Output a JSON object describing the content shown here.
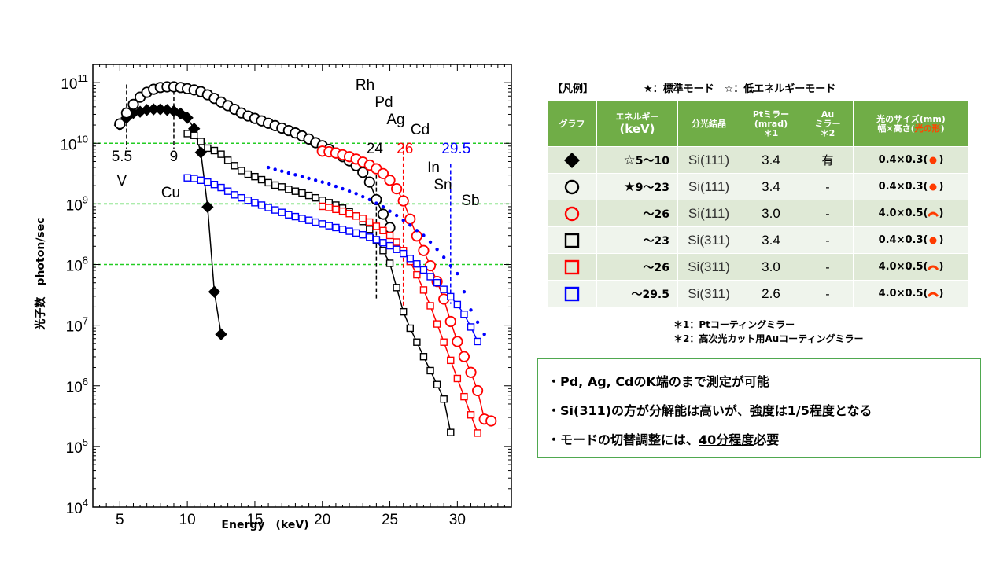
{
  "chart_data": {
    "type": "scatter",
    "xlabel": "Energy　(keV)",
    "ylabel": "光子数　photon/sec",
    "xlim": [
      3,
      34
    ],
    "ylim_log10": [
      4,
      11.3
    ],
    "y_scale": "log",
    "x_ticks": [
      "5",
      "10",
      "15",
      "20",
      "25",
      "30"
    ],
    "y_ticks": [
      {
        "base": "10",
        "exp": "4"
      },
      {
        "base": "10",
        "exp": "5"
      },
      {
        "base": "10",
        "exp": "6"
      },
      {
        "base": "10",
        "exp": "7"
      },
      {
        "base": "10",
        "exp": "8"
      },
      {
        "base": "10",
        "exp": "9"
      },
      {
        "base": "10",
        "exp": "10"
      },
      {
        "base": "10",
        "exp": "11"
      }
    ],
    "gridlines_y": [
      8,
      9,
      10
    ],
    "grid_color": "#22cc22",
    "series": [
      {
        "symbol": "diamond",
        "color": "#000000",
        "filled": true,
        "x": [
          5,
          5.5,
          6,
          6.5,
          7,
          7.5,
          8,
          8.5,
          9,
          9.5,
          10,
          10.5,
          11,
          11.5,
          12,
          12.5
        ],
        "log_y": [
          10.3,
          10.42,
          10.5,
          10.52,
          10.55,
          10.56,
          10.56,
          10.55,
          10.53,
          10.49,
          10.42,
          10.24,
          9.85,
          8.95,
          7.55,
          6.85
        ]
      },
      {
        "symbol": "circle",
        "color": "#000000",
        "filled": false,
        "x": [
          5,
          5.5,
          6,
          6.5,
          7,
          7.5,
          8,
          8.5,
          9,
          9.5,
          10,
          10.5,
          11,
          11.5,
          12,
          12.5,
          13,
          13.5,
          14,
          14.5,
          15,
          15.5,
          16,
          16.5,
          17,
          17.5,
          18,
          18.5,
          19,
          19.5,
          20,
          20.5,
          21,
          21.5,
          22,
          22.5,
          23,
          23.5,
          24,
          24.5,
          25
        ],
        "log_y": [
          10.32,
          10.5,
          10.64,
          10.76,
          10.84,
          10.89,
          10.92,
          10.93,
          10.93,
          10.92,
          10.9,
          10.88,
          10.85,
          10.8,
          10.74,
          10.68,
          10.62,
          10.56,
          10.5,
          10.45,
          10.41,
          10.37,
          10.33,
          10.29,
          10.25,
          10.21,
          10.17,
          10.12,
          10.07,
          10.01,
          9.96,
          9.9,
          9.84,
          9.78,
          9.71,
          9.63,
          9.52,
          9.36,
          9.07,
          8.83,
          8.61
        ]
      },
      {
        "symbol": "circle",
        "color": "#ff0000",
        "filled": false,
        "x": [
          20,
          20.5,
          21,
          21.5,
          22,
          22.5,
          23,
          23.5,
          24,
          24.5,
          25,
          25.5,
          26,
          26.5,
          27,
          27.5,
          28,
          28.5,
          29,
          29.5,
          30,
          30.5,
          31,
          31.5,
          32,
          32.5
        ],
        "log_y": [
          9.87,
          9.86,
          9.84,
          9.81,
          9.78,
          9.74,
          9.69,
          9.64,
          9.58,
          9.5,
          9.39,
          9.25,
          9.05,
          8.75,
          8.47,
          8.23,
          7.98,
          7.72,
          7.43,
          7.06,
          6.73,
          6.48,
          6.22,
          5.92,
          5.45,
          5.42
        ]
      },
      {
        "symbol": "square",
        "color": "#000000",
        "filled": false,
        "x": [
          10,
          10.5,
          11,
          11.5,
          12,
          12.5,
          13,
          13.5,
          14,
          14.5,
          15,
          15.5,
          16,
          16.5,
          17,
          17.5,
          18,
          18.5,
          19,
          19.5,
          20,
          20.5,
          21,
          21.5,
          22,
          22.5,
          23,
          23.5,
          24,
          24.5,
          25,
          25.5,
          26,
          26.5,
          27,
          27.5,
          28,
          28.5,
          29,
          29.5
        ],
        "log_y": [
          10.16,
          10.13,
          10.03,
          9.92,
          9.88,
          9.82,
          9.72,
          9.63,
          9.55,
          9.49,
          9.45,
          9.4,
          9.35,
          9.31,
          9.28,
          9.24,
          9.21,
          9.18,
          9.14,
          9.1,
          9.06,
          9.02,
          8.98,
          8.93,
          8.87,
          8.8,
          8.71,
          8.58,
          8.4,
          8.23,
          8.02,
          7.62,
          7.22,
          6.95,
          6.72,
          6.48,
          6.25,
          6.02,
          5.78,
          5.23
        ]
      },
      {
        "symbol": "square",
        "color": "#ff0000",
        "filled": false,
        "x": [
          20,
          20.5,
          21,
          21.5,
          22,
          22.5,
          23,
          23.5,
          24,
          24.5,
          25,
          25.5,
          26,
          26.5,
          27,
          27.5,
          28,
          28.5,
          29,
          29.5,
          30,
          30.5,
          31,
          31.5
        ],
        "log_y": [
          8.96,
          8.94,
          8.91,
          8.88,
          8.84,
          8.8,
          8.76,
          8.7,
          8.63,
          8.56,
          8.48,
          8.37,
          8.23,
          8.05,
          7.83,
          7.58,
          7.32,
          7.02,
          6.72,
          6.42,
          6.12,
          5.82,
          5.52,
          5.22
        ]
      },
      {
        "symbol": "square",
        "color": "#0000ff",
        "filled": false,
        "x": [
          10,
          10.5,
          11,
          11.5,
          12,
          12.5,
          13,
          13.5,
          14,
          14.5,
          15,
          15.5,
          16,
          16.5,
          17,
          17.5,
          18,
          18.5,
          19,
          19.5,
          20,
          20.5,
          21,
          21.5,
          22,
          22.5,
          23,
          23.5,
          24,
          24.5,
          25,
          25.5,
          26,
          26.5,
          27,
          27.5,
          28,
          28.5,
          29,
          29.5,
          30,
          30.5,
          31,
          31.5
        ],
        "log_y": [
          9.43,
          9.42,
          9.39,
          9.36,
          9.32,
          9.27,
          9.21,
          9.15,
          9.1,
          9.06,
          9.02,
          8.98,
          8.94,
          8.9,
          8.86,
          8.82,
          8.79,
          8.76,
          8.73,
          8.7,
          8.67,
          8.64,
          8.61,
          8.58,
          8.55,
          8.52,
          8.49,
          8.45,
          8.41,
          8.36,
          8.31,
          8.25,
          8.18,
          8.1,
          8.01,
          7.91,
          7.8,
          7.7,
          7.59,
          7.47,
          7.34,
          7.18,
          6.97,
          6.73
        ]
      },
      {
        "symbol": "dot",
        "color": "#0000ff",
        "filled": true,
        "x": [
          16,
          16.5,
          17,
          17.5,
          18,
          18.5,
          19,
          19.5,
          20,
          20.5,
          21,
          21.5,
          22,
          22.5,
          23,
          23.5,
          24,
          24.5,
          25,
          25.5,
          26,
          26.5,
          27,
          27.5,
          28,
          28.5,
          29,
          29.5,
          30,
          30.5,
          31,
          31.5,
          32
        ],
        "log_y": [
          9.6,
          9.57,
          9.54,
          9.51,
          9.48,
          9.45,
          9.42,
          9.39,
          9.36,
          9.33,
          9.29,
          9.25,
          9.21,
          9.17,
          9.12,
          9.07,
          9.01,
          8.95,
          8.88,
          8.81,
          8.73,
          8.65,
          8.56,
          8.48,
          8.37,
          8.25,
          8.12,
          7.98,
          7.85,
          7.55,
          7.25,
          7.05,
          6.85
        ]
      }
    ],
    "edges": [
      {
        "x": 5.5,
        "log_top": 10.97,
        "log_bottom": 9.9,
        "color": "#000000",
        "value_label": "5.5",
        "element_label": "V"
      },
      {
        "x": 9,
        "log_top": 10.97,
        "log_bottom": 9.9,
        "color": "#000000",
        "value_label": "9",
        "element_label": "Cu"
      },
      {
        "x": 24,
        "log_top": 9.58,
        "log_bottom": 7.42,
        "color": "#000000",
        "value_label": "24",
        "element_label": ""
      },
      {
        "x": 26,
        "log_top": 9.98,
        "log_bottom": 7.32,
        "color": "#ff0000",
        "value_label": "26",
        "element_label": ""
      },
      {
        "x": 29.5,
        "log_top": 9.66,
        "log_bottom": 7.35,
        "color": "#0000ff",
        "value_label": "29.5",
        "element_label": ""
      }
    ],
    "element_labels": [
      "Rh",
      "Pd",
      "Ag",
      "Cd",
      "In",
      "Sn",
      "Sb"
    ]
  },
  "legend": {
    "title": "【凡例】",
    "modes": "★：標準モード　☆：低エネルギーモード",
    "headers": {
      "graph": "グラフ",
      "energy_1": "エネルギー",
      "energy_2": "(keV)",
      "crystal": "分光結晶",
      "pt_1": "Ptミラー",
      "pt_2": "(mrad)",
      "pt_3": "＊1",
      "au_1": "Au",
      "au_2": "ミラー",
      "au_3": "＊2",
      "size_1": "光のサイズ(mm)",
      "size_2a": "幅×高さ(",
      "size_2b": "光の形",
      "size_2c": ")"
    },
    "rows": [
      {
        "symbol": "diamond",
        "color": "#000000",
        "star": "☆",
        "energy": "5～10",
        "crystal": "Si(111)",
        "pt": "3.4",
        "au": "有",
        "size": "0.4×0.3",
        "shape": "dot"
      },
      {
        "symbol": "circle",
        "color": "#000000",
        "star": "★",
        "energy": "9～23",
        "crystal": "Si(111)",
        "pt": "3.4",
        "au": "-",
        "size": "0.4×0.3",
        "shape": "dot"
      },
      {
        "symbol": "circle",
        "color": "#ff0000",
        "star": "",
        "energy": "～26",
        "crystal": "Si(111)",
        "pt": "3.0",
        "au": "-",
        "size": "4.0×0.5",
        "shape": "arc"
      },
      {
        "symbol": "square",
        "color": "#000000",
        "star": "",
        "energy": "～23",
        "crystal": "Si(311)",
        "pt": "3.4",
        "au": "-",
        "size": "0.4×0.3",
        "shape": "dot"
      },
      {
        "symbol": "square",
        "color": "#ff0000",
        "star": "",
        "energy": "～26",
        "crystal": "Si(311)",
        "pt": "3.0",
        "au": "-",
        "size": "4.0×0.5",
        "shape": "arc"
      },
      {
        "symbol": "square",
        "color": "#0000ff",
        "star": "",
        "energy": "～29.5",
        "crystal": "Si(311)",
        "pt": "2.6",
        "au": "-",
        "size": "4.0×0.5",
        "shape": "arc"
      }
    ],
    "paren_open": "(",
    "paren_close": ")",
    "footnote_1": "＊1：Ptコーティングミラー",
    "footnote_2": "＊2：高次光カット用Auコーティングミラー"
  },
  "notes": {
    "line1": "・Pd, Ag, CdのK端のまで測定が可能",
    "line2": "・Si(311)の方が分解能は高いが、強度は1/5程度となる",
    "line3_a": "・モードの切替調整には、",
    "line3_u": "40分程度",
    "line3_b": "必要"
  },
  "colors": {
    "header_green": "#70ad47",
    "row_odd": "#dfe9d6",
    "row_even": "#eff4ec",
    "shape_orange": "#ff3b00",
    "box_border": "#4fa84f"
  }
}
